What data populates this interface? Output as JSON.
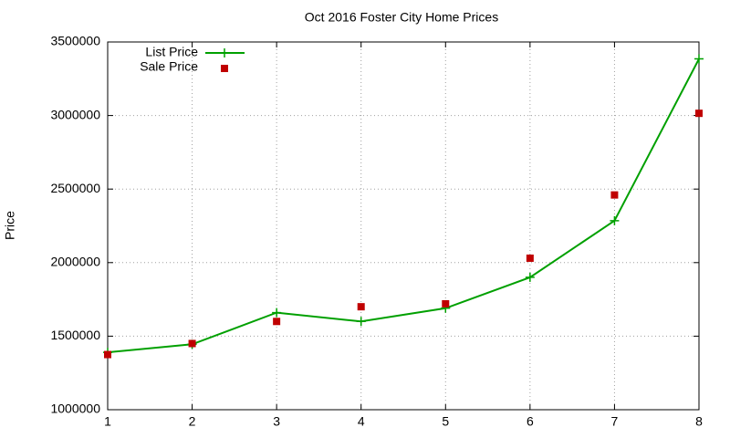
{
  "chart_data": {
    "type": "line",
    "title": "Oct 2016 Foster City Home Prices",
    "y_label": "Price",
    "x": [
      1,
      2,
      3,
      4,
      5,
      6,
      7,
      8
    ],
    "series": [
      {
        "name": "List Price",
        "color": "#00a000",
        "style": "linespoints",
        "values": [
          1390000,
          1445000,
          1660000,
          1600000,
          1690000,
          1900000,
          2285000,
          3385000
        ]
      },
      {
        "name": "Sale Price",
        "color": "#c00000",
        "style": "points",
        "values": [
          1375000,
          1450000,
          1600000,
          1700000,
          1720000,
          2030000,
          2460000,
          3015000
        ]
      }
    ],
    "xlim": [
      1,
      8
    ],
    "xticks": [
      1,
      2,
      3,
      4,
      5,
      6,
      7,
      8
    ],
    "ylim": [
      1000000,
      3500000
    ],
    "yticks": [
      1000000,
      1500000,
      2000000,
      2500000,
      3000000,
      3500000
    ],
    "grid": true,
    "legend": "top-left"
  }
}
